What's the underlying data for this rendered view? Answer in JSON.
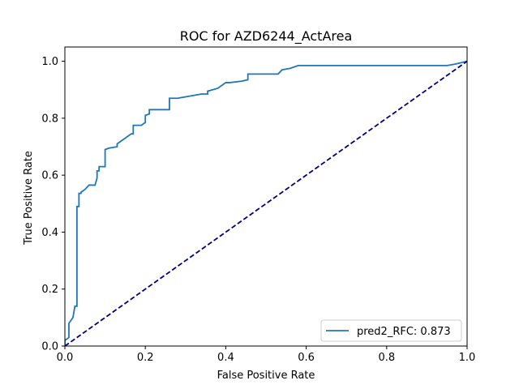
{
  "chart_data": {
    "type": "line",
    "title": "ROC for AZD6244_ActArea",
    "xlabel": "False Positive Rate",
    "ylabel": "True Positive Rate",
    "xlim": [
      0,
      1
    ],
    "ylim": [
      0,
      1.05
    ],
    "xticks": [
      "0.0",
      "0.2",
      "0.4",
      "0.6",
      "0.8",
      "1.0"
    ],
    "yticks": [
      "0.0",
      "0.2",
      "0.4",
      "0.6",
      "0.8",
      "1.0"
    ],
    "grid": false,
    "legend_position": "lower-right",
    "series": [
      {
        "name": "pred2_RFC: 0.873",
        "color": "#1f77b4",
        "style": "solid",
        "x": [
          0.0,
          0.0,
          0.01,
          0.01,
          0.02,
          0.025,
          0.03,
          0.03,
          0.035,
          0.035,
          0.04,
          0.04,
          0.05,
          0.06,
          0.065,
          0.075,
          0.08,
          0.08,
          0.085,
          0.085,
          0.1,
          0.1,
          0.11,
          0.13,
          0.13,
          0.165,
          0.17,
          0.17,
          0.19,
          0.2,
          0.2,
          0.21,
          0.21,
          0.26,
          0.26,
          0.28,
          0.3,
          0.32,
          0.34,
          0.355,
          0.355,
          0.38,
          0.4,
          0.41,
          0.44,
          0.455,
          0.455,
          0.53,
          0.54,
          0.56,
          0.58,
          0.6,
          0.65,
          0.7,
          0.75,
          0.8,
          0.85,
          0.9,
          0.95,
          0.97,
          1.0
        ],
        "y": [
          0.0,
          0.02,
          0.03,
          0.08,
          0.1,
          0.14,
          0.14,
          0.49,
          0.49,
          0.536,
          0.536,
          0.54,
          0.55,
          0.565,
          0.565,
          0.565,
          0.59,
          0.615,
          0.615,
          0.63,
          0.63,
          0.69,
          0.695,
          0.7,
          0.71,
          0.745,
          0.745,
          0.775,
          0.775,
          0.785,
          0.81,
          0.815,
          0.83,
          0.83,
          0.87,
          0.87,
          0.875,
          0.88,
          0.885,
          0.885,
          0.895,
          0.905,
          0.925,
          0.925,
          0.93,
          0.935,
          0.955,
          0.955,
          0.97,
          0.975,
          0.985,
          0.985,
          0.985,
          0.985,
          0.985,
          0.985,
          0.985,
          0.985,
          0.985,
          0.99,
          1.0
        ]
      },
      {
        "name": "",
        "color": "#000080",
        "style": "dashed",
        "x": [
          0,
          1
        ],
        "y": [
          0,
          1
        ]
      }
    ]
  }
}
